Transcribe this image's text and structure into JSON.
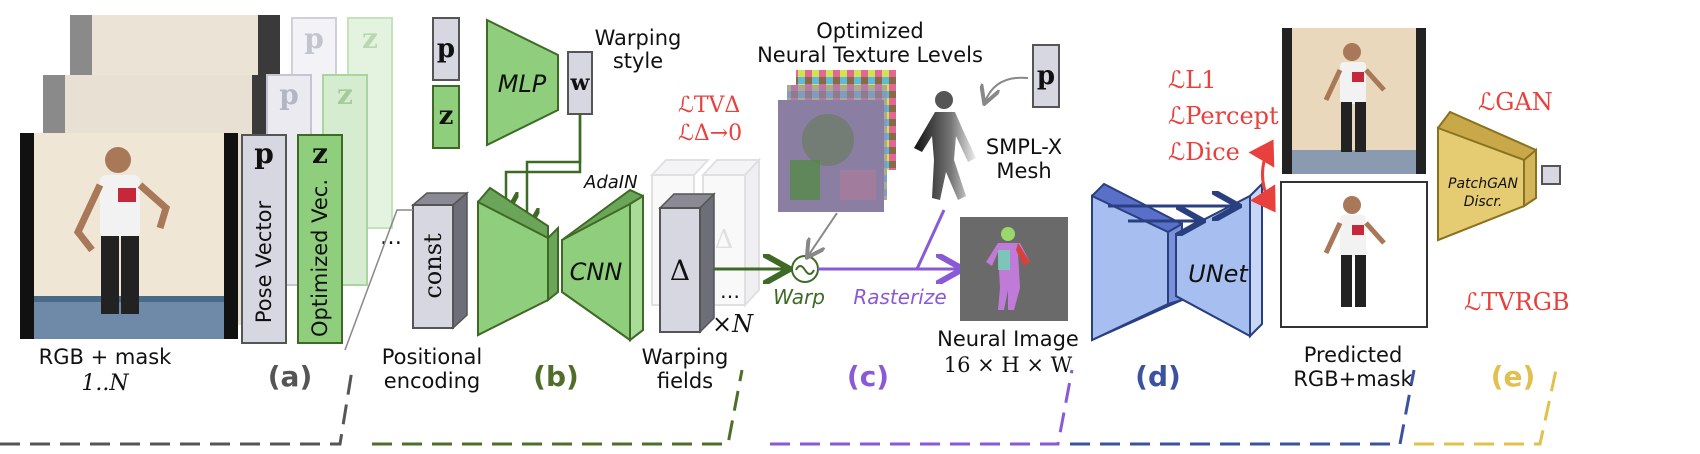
{
  "colors": {
    "gray_section": "#555555",
    "green_section": "#4f6e2a",
    "purple_section": "#8a5ad6",
    "blue_section": "#3a52a0",
    "yellow_section": "#e2c04e",
    "loss_red": "#e8403c",
    "green_fill": "#8fce7c",
    "blue_fill": "#a6bef0",
    "gray_fill": "#d7d7e2",
    "gold_fill": "#e5cb72"
  },
  "input": {
    "caption": "RGB + mask",
    "range": "1..N",
    "pose_symbol": "p",
    "latent_symbol": "z",
    "pose_vector_label": "Pose Vector",
    "optimized_vector_label": "Optimized Vec.",
    "ellipsis": "…"
  },
  "positional": {
    "block_label": "const",
    "caption_line1": "Positional",
    "caption_line2": "encoding"
  },
  "mlp": {
    "p_symbol": "p",
    "z_symbol": "z",
    "label": "MLP",
    "w_symbol": "w",
    "style_line1": "Warping",
    "style_line2": "style",
    "adain_label": "AdaIN"
  },
  "cnn": {
    "label": "CNN"
  },
  "warping": {
    "delta_symbol": "Δ",
    "times_n": "×N",
    "ellipsis": "…",
    "caption_line1": "Warping",
    "caption_line2": "fields",
    "warp_label": "Warp"
  },
  "texture": {
    "title_line1": "Optimized",
    "title_line2": "Neural Texture Levels"
  },
  "mesh": {
    "p_symbol": "p",
    "label_line1": "SMPL-X",
    "label_line2": "Mesh",
    "rasterize_label": "Rasterize"
  },
  "neural_image": {
    "label": "Neural Image",
    "dims": "16 × H × W"
  },
  "unet": {
    "label": "UNet"
  },
  "losses": {
    "tv_delta": "ℒTVΔ",
    "delta_zero": "ℒΔ→0",
    "l1": "ℒL1",
    "percept": "ℒPercept",
    "dice": "ℒDice",
    "gan": "ℒGAN",
    "tv_rgb": "ℒTVRGB"
  },
  "prediction": {
    "caption_line1": "Predicted",
    "caption_line2": "RGB+mask"
  },
  "discriminator": {
    "label_line1": "PatchGAN",
    "label_line2": "Discr."
  },
  "panels": {
    "a": "(a)",
    "b": "(b)",
    "c": "(c)",
    "d": "(d)",
    "e": "(e)"
  }
}
